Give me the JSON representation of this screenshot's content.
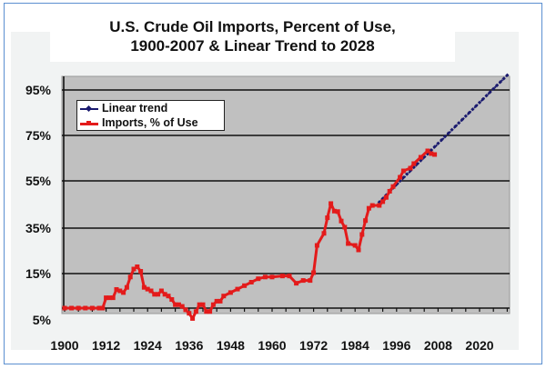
{
  "chart_data": {
    "type": "line",
    "title": "U.S. Crude Oil Imports, Percent of Use,",
    "subtitle": "1900-2007 & Linear Trend to 2028",
    "xlabel": "",
    "ylabel": "",
    "xlim": [
      1900,
      2029
    ],
    "x_ticks": [
      "1900",
      "1912",
      "1924",
      "1936",
      "1948",
      "1960",
      "1972",
      "1984",
      "1996",
      "2008",
      "2020"
    ],
    "y_ticks": [
      "5%",
      "15%",
      "35%",
      "55%",
      "75%",
      "95%"
    ],
    "y_tick_values": [
      5,
      15,
      35,
      55,
      75,
      95
    ],
    "grid": true,
    "legend_position": "top-left",
    "plot_background": "#c0c0c0",
    "series": [
      {
        "name": "Linear trend",
        "color": "#1a1a6e",
        "x": [
          1991,
          2028
        ],
        "y": [
          46,
          101.5
        ]
      },
      {
        "name": "Imports, % of Use",
        "color": "#e31b1b",
        "x": [
          1900,
          1902,
          1904,
          1906,
          1908,
          1910,
          1911,
          1912,
          1913,
          1914,
          1915,
          1916,
          1917,
          1918,
          1919,
          1920,
          1921,
          1922,
          1923,
          1924,
          1925,
          1926,
          1927,
          1928,
          1929,
          1930,
          1931,
          1932,
          1933,
          1934,
          1935,
          1936,
          1937,
          1938,
          1939,
          1940,
          1941,
          1942,
          1943,
          1944,
          1945,
          1946,
          1948,
          1950,
          1952,
          1954,
          1956,
          1958,
          1960,
          1963,
          1965,
          1967,
          1969,
          1971,
          1972,
          1973,
          1975,
          1976,
          1977,
          1978,
          1979,
          1980,
          1981,
          1982,
          1984,
          1985,
          1986,
          1987,
          1988,
          1989,
          1991,
          1992,
          1993,
          1994,
          1995,
          1997,
          1998,
          2000,
          2001,
          2003,
          2005,
          2006,
          2007
        ],
        "y": [
          5,
          5,
          5,
          5,
          5,
          5,
          5,
          8,
          8,
          8,
          10.4,
          10,
          9.5,
          11,
          14,
          17,
          18,
          16,
          11,
          10.5,
          10,
          9,
          9,
          10,
          9,
          8.5,
          7.5,
          6,
          6,
          5.5,
          4.5,
          3.5,
          2,
          4,
          6,
          6,
          4,
          4,
          6,
          7,
          7,
          8.5,
          9.5,
          10.5,
          11.5,
          12.5,
          13.5,
          14,
          14,
          14.3,
          14.3,
          12.2,
          13,
          13,
          15.4,
          27.4,
          32.7,
          39.4,
          45.4,
          42.2,
          42,
          38,
          35.4,
          28.2,
          27.4,
          25.4,
          32.2,
          38.2,
          43.4,
          44.6,
          44.6,
          46.2,
          48,
          50.6,
          52.6,
          56.6,
          59.4,
          60.6,
          62.6,
          65.4,
          68.2,
          67,
          66.6
        ]
      }
    ]
  }
}
